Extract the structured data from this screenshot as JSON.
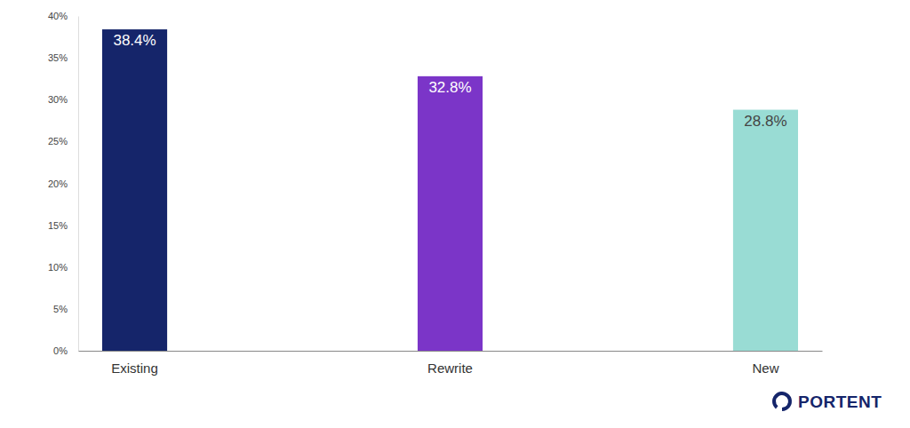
{
  "chart_data": {
    "type": "bar",
    "categories": [
      "Existing",
      "Rewrite",
      "New"
    ],
    "values": [
      38.4,
      32.8,
      28.8
    ],
    "value_labels": [
      "38.4%",
      "32.8%",
      "28.8%"
    ],
    "colors": [
      "#15256a",
      "#7b35c8",
      "#99dcd4"
    ],
    "ylim": [
      0,
      40
    ],
    "yticks": [
      {
        "value": 0,
        "label": "0%"
      },
      {
        "value": 5,
        "label": "5%"
      },
      {
        "value": 10,
        "label": "10%"
      },
      {
        "value": 15,
        "label": "15%"
      },
      {
        "value": 20,
        "label": "20%"
      },
      {
        "value": 25,
        "label": "25%"
      },
      {
        "value": 30,
        "label": "30%"
      },
      {
        "value": 35,
        "label": "35%"
      },
      {
        "value": 40,
        "label": "40%"
      }
    ],
    "grid": false,
    "data_labels": true,
    "annotations": [
      "PORTENT"
    ]
  }
}
